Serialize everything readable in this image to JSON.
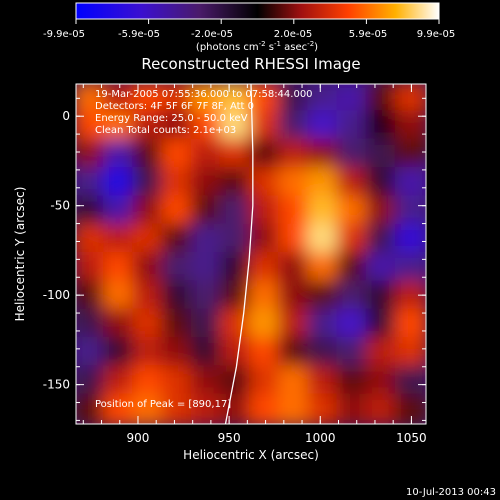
{
  "colorbar": {
    "tick_labels": [
      "-9.9e-05",
      "-5.9e-05",
      "-2.0e-05",
      "2.0e-05",
      "5.9e-05",
      "9.9e-05"
    ],
    "range": [
      -9.9e-05,
      9.9e-05
    ],
    "units_main": "(photons cm",
    "units_exp1": "-2",
    "units_mid": " s",
    "units_exp2": "-1",
    "units_mid2": " asec",
    "units_exp3": "-2",
    "units_end": ")"
  },
  "chart_data": {
    "type": "heatmap",
    "title": "Reconstructed RHESSI Image",
    "xlabel": "Heliocentric X (arcsec)",
    "ylabel": "Heliocentric Y (arcsec)",
    "xlim": [
      866,
      1058
    ],
    "ylim": [
      -172,
      18
    ],
    "xticks": [
      900,
      950,
      1000,
      1050
    ],
    "yticks": [
      0,
      -50,
      -100,
      -150
    ],
    "xtick_labels": [
      "900",
      "950",
      "1000",
      "1050"
    ],
    "ytick_labels": [
      "0",
      "-50",
      "-100",
      "-150"
    ],
    "annotations": [
      "19-Mar-2005 07:55:36.000 to 07:58:44.000",
      "Detectors: 4F 5F 6F 7F 8F, Att 0",
      "Energy Range: 25.0 - 50.0 keV",
      "Clean    Total counts: 2.1e+03"
    ],
    "peak_label": "Position of Peak = [890,17]",
    "peak_position": [
      890,
      17
    ],
    "limb_curve": [
      [
        948,
        -172
      ],
      [
        954,
        -140
      ],
      [
        958,
        -110
      ],
      [
        961,
        -80
      ],
      [
        963,
        -50
      ],
      [
        963,
        -20
      ],
      [
        962,
        18
      ]
    ],
    "image_grid": {
      "rows_top_to_bottom": 12,
      "cols_left_to_right": 12,
      "values": [
        [
          0.6,
          0.3,
          0.5,
          0.4,
          0.7,
          0.8,
          0.5,
          -0.2,
          -0.4,
          -0.5,
          0.1,
          0.4
        ],
        [
          0.5,
          0.6,
          0.3,
          0.2,
          0.5,
          0.9,
          0.4,
          -0.3,
          -0.6,
          -0.4,
          0.0,
          0.2
        ],
        [
          0.2,
          -0.5,
          0.1,
          0.5,
          0.3,
          0.4,
          0.1,
          0.3,
          0.2,
          -0.3,
          -0.2,
          0.1
        ],
        [
          -0.4,
          -0.8,
          -0.2,
          0.4,
          0.2,
          0.1,
          0.4,
          0.6,
          0.7,
          0.3,
          -0.1,
          -0.5
        ],
        [
          -0.1,
          -0.5,
          0.2,
          0.5,
          0.1,
          -0.3,
          0.3,
          0.5,
          0.8,
          0.6,
          0.2,
          -0.4
        ],
        [
          0.4,
          0.3,
          0.4,
          0.1,
          -0.4,
          -0.3,
          0.2,
          0.5,
          0.9,
          0.4,
          -0.2,
          -0.7
        ],
        [
          0.3,
          0.5,
          0.2,
          -0.3,
          -0.4,
          -0.1,
          0.4,
          0.2,
          0.6,
          0.1,
          -0.5,
          -0.4
        ],
        [
          0.1,
          0.6,
          0.3,
          -0.1,
          -0.3,
          0.1,
          0.6,
          0.2,
          0.1,
          -0.3,
          -0.1,
          0.3
        ],
        [
          -0.2,
          0.2,
          0.4,
          0.1,
          -0.2,
          0.4,
          0.7,
          0.3,
          -0.4,
          -0.6,
          -0.1,
          0.5
        ],
        [
          -0.4,
          -0.1,
          0.3,
          0.2,
          -0.1,
          0.3,
          0.5,
          0.1,
          -0.2,
          -0.3,
          0.3,
          0.4
        ],
        [
          -0.2,
          0.3,
          0.5,
          0.4,
          0.2,
          0.1,
          0.4,
          0.6,
          0.3,
          0.1,
          0.2,
          -0.2
        ],
        [
          0.1,
          0.5,
          0.6,
          0.4,
          0.3,
          0.2,
          0.5,
          0.6,
          0.4,
          0.2,
          0.3,
          0.1
        ]
      ]
    }
  },
  "footer": {
    "timestamp": "10-Jul-2013 00:43"
  }
}
